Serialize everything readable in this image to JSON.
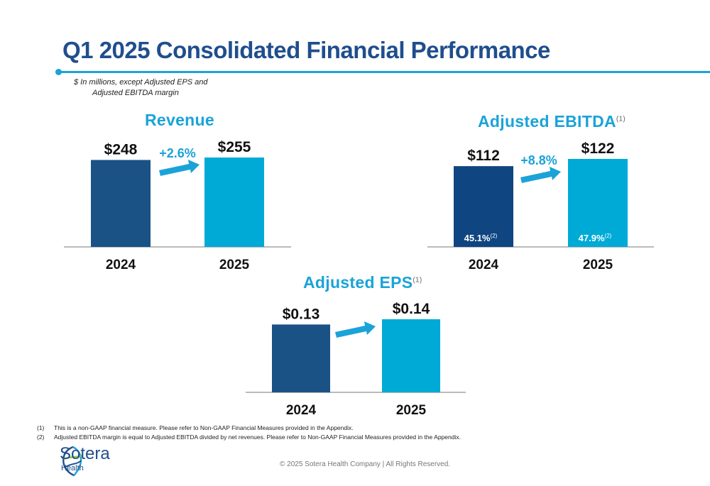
{
  "title": "Q1 2025 Consolidated Financial Performance",
  "units_note": [
    "$ In millions, except Adjusted EPS and",
    "Adjusted EBITDA margin"
  ],
  "colors": {
    "dark_blue": "#1a5286",
    "light_blue": "#00aad6",
    "accent": "#1aa3d8",
    "title": "#1f4e8c",
    "axis": "#bbbbbb"
  },
  "chart_data": [
    {
      "id": "revenue",
      "type": "bar",
      "title": "Revenue",
      "footnote_ref": "",
      "categories": [
        "2024",
        "2025"
      ],
      "values": [
        248,
        255
      ],
      "value_labels": [
        "$248",
        "$255"
      ],
      "growth_label": "+2.6%",
      "ylim": [
        0,
        255
      ]
    },
    {
      "id": "ebitda",
      "type": "bar",
      "title": "Adjusted EBITDA",
      "footnote_ref": "(1)",
      "categories": [
        "2024",
        "2025"
      ],
      "values": [
        112,
        122
      ],
      "value_labels": [
        "$112",
        "$122"
      ],
      "growth_label": "+8.8%",
      "inner_labels": [
        "45.1%",
        "47.9%"
      ],
      "inner_label_ref": "(2)",
      "ylim": [
        0,
        122
      ]
    },
    {
      "id": "eps",
      "type": "bar",
      "title": "Adjusted EPS",
      "footnote_ref": "(1)",
      "categories": [
        "2024",
        "2025"
      ],
      "values": [
        0.13,
        0.14
      ],
      "value_labels": [
        "$0.13",
        "$0.14"
      ],
      "growth_label": "",
      "ylim": [
        0,
        0.14
      ]
    }
  ],
  "footnotes": [
    {
      "num": "(1)",
      "text": "This is a non-GAAP financial measure. Please refer to Non-GAAP Financial Measures provided in the Appendix."
    },
    {
      "num": "(2)",
      "text": "Adjusted EBITDA margin is equal to Adjusted EBITDA divided by net revenues. Please refer to Non-GAAP Financial Measures provided in the Appendix."
    }
  ],
  "logo": {
    "name": "Sotera",
    "sub": "Health"
  },
  "copyright": "© 2025 Sotera Health Company |  All Rights Reserved."
}
